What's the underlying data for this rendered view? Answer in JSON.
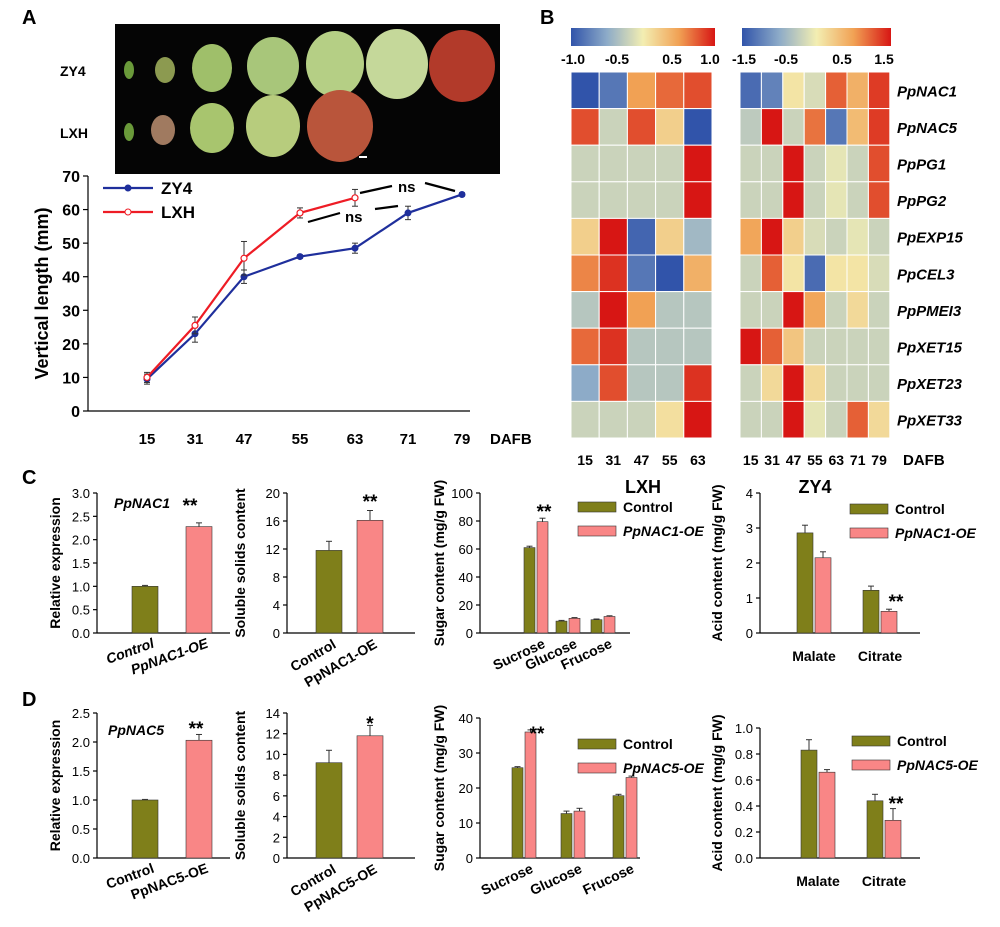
{
  "panel_labels": {
    "a": "A",
    "b": "B",
    "c": "C",
    "d": "D"
  },
  "photo": {
    "row_labels": [
      "ZY4",
      "LXH"
    ]
  },
  "chart_data": [
    {
      "id": "A",
      "type": "line",
      "ylabel": "Vertical  length (mm)",
      "xlabel": "DAFB",
      "categories": [
        "15",
        "31",
        "47",
        "55",
        "63",
        "71",
        "79"
      ],
      "ylim": [
        0,
        70
      ],
      "yticks": [
        0,
        10,
        20,
        30,
        40,
        50,
        60,
        70
      ],
      "series": [
        {
          "name": "ZY4",
          "color": "#1f2f9c",
          "values": [
            9.5,
            23,
            40,
            46,
            48.5,
            59,
            64.5
          ],
          "errors": [
            1.5,
            2.5,
            2,
            0.5,
            1.5,
            2,
            0.5
          ]
        },
        {
          "name": "LXH",
          "color": "#ee1c25",
          "values": [
            10,
            25.5,
            45.5,
            59,
            63.5,
            null,
            null
          ],
          "errors": [
            1.5,
            2.5,
            5,
            1.5,
            2.5,
            null,
            null
          ]
        }
      ],
      "annotations": [
        "ns",
        "ns"
      ]
    },
    {
      "id": "B-LXH",
      "type": "heatmap",
      "title": "LXH",
      "colorbar": {
        "ticks": [
          "-1.0",
          "-0.5",
          "0.5",
          "1.0"
        ],
        "min": -1.0,
        "max": 1.0
      },
      "x": [
        "15",
        "31",
        "47",
        "55",
        "63"
      ],
      "rows": [
        "PpNAC1",
        "PpNAC5",
        "PpPG1",
        "PpPG2",
        "PpEXP15",
        "PpCEL3",
        "PpPMEI3",
        "PpXET15",
        "PpXET23",
        "PpXET33"
      ],
      "values": [
        [
          -1.0,
          -0.8,
          0.5,
          0.7,
          0.8
        ],
        [
          0.8,
          -0.2,
          0.8,
          0.2,
          -1.0
        ],
        [
          -0.2,
          -0.2,
          -0.2,
          -0.2,
          1.0
        ],
        [
          -0.2,
          -0.2,
          -0.2,
          -0.2,
          1.0
        ],
        [
          0.2,
          1.0,
          -0.9,
          0.2,
          -0.4
        ],
        [
          0.6,
          0.9,
          -0.8,
          -1.0,
          0.4
        ],
        [
          -0.3,
          1.0,
          0.5,
          -0.3,
          -0.3
        ],
        [
          0.7,
          0.9,
          -0.3,
          -0.3,
          -0.3
        ],
        [
          -0.5,
          0.8,
          -0.3,
          -0.3,
          0.9
        ],
        [
          -0.2,
          -0.2,
          -0.2,
          0.1,
          1.0
        ]
      ]
    },
    {
      "id": "B-ZY4",
      "type": "heatmap",
      "title": "ZY4",
      "colorbar": {
        "ticks": [
          "-1.5",
          "-0.5",
          "0.5",
          "1.5"
        ],
        "min": -1.5,
        "max": 1.5
      },
      "x": [
        "15",
        "31",
        "47",
        "55",
        "63",
        "71",
        "79"
      ],
      "xlabel": "DAFB",
      "rows": [
        "PpNAC1",
        "PpNAC5",
        "PpPG1",
        "PpPG2",
        "PpEXP15",
        "PpCEL3",
        "PpPMEI3",
        "PpXET15",
        "PpXET23",
        "PpXET33"
      ],
      "values": [
        [
          -1.3,
          -1.1,
          0.1,
          -0.2,
          1.1,
          0.6,
          1.3
        ],
        [
          -0.4,
          1.5,
          -0.3,
          1.0,
          -1.2,
          0.5,
          1.3
        ],
        [
          -0.3,
          -0.3,
          1.5,
          -0.3,
          -0.1,
          -0.3,
          1.2
        ],
        [
          -0.3,
          -0.3,
          1.5,
          -0.3,
          -0.1,
          -0.3,
          1.2
        ],
        [
          0.7,
          1.6,
          0.3,
          -0.2,
          -0.3,
          -0.1,
          -0.3
        ],
        [
          -0.3,
          1.1,
          0.1,
          -1.3,
          0.1,
          0.1,
          -0.2
        ],
        [
          -0.3,
          -0.3,
          1.5,
          0.7,
          -0.3,
          0.2,
          -0.3
        ],
        [
          1.5,
          1.1,
          0.4,
          -0.3,
          -0.3,
          -0.3,
          -0.3
        ],
        [
          -0.3,
          0.2,
          1.6,
          0.2,
          -0.3,
          -0.3,
          -0.3
        ],
        [
          -0.3,
          -0.3,
          1.5,
          -0.1,
          -0.3,
          1.1,
          0.2
        ]
      ]
    },
    {
      "id": "C1",
      "type": "bar",
      "title": "PpNAC1",
      "ylabel": "Relative expression",
      "categories": [
        "Control",
        "PpNAC1-OE"
      ],
      "values": [
        1.0,
        2.28
      ],
      "errors": [
        0.02,
        0.08
      ],
      "ylim": [
        0,
        3.0
      ],
      "yticks": [
        "0.0",
        "0.5",
        "1.0",
        "1.5",
        "2.0",
        "2.5",
        "3.0"
      ],
      "sig": "**"
    },
    {
      "id": "C2",
      "type": "bar",
      "ylabel": "Soluble solids content",
      "categories": [
        "Control",
        "PpNAC1-OE"
      ],
      "values": [
        11.8,
        16.1
      ],
      "errors": [
        1.3,
        1.4
      ],
      "ylim": [
        0,
        20
      ],
      "yticks": [
        "0",
        "4",
        "8",
        "12",
        "16",
        "20"
      ],
      "sig": "**"
    },
    {
      "id": "C3",
      "type": "bar",
      "ylabel": "Sugar content (mg/g FW)",
      "categories": [
        "Sucrose",
        "Glucose",
        "Frucose"
      ],
      "series": [
        {
          "name": "Control",
          "color": "#7f7f1a",
          "values": [
            61,
            8.5,
            9.5
          ],
          "errors": [
            1.0,
            0.5,
            0.5
          ]
        },
        {
          "name": "PpNAC1-OE",
          "color": "#f98686",
          "values": [
            79.5,
            10.5,
            11.8
          ],
          "errors": [
            2.5,
            0.5,
            0.5
          ]
        }
      ],
      "ylim": [
        0,
        100
      ],
      "yticks": [
        "0",
        "20",
        "40",
        "60",
        "80",
        "100"
      ],
      "sig": "**"
    },
    {
      "id": "C4",
      "type": "bar",
      "ylabel": "Acid content (mg/g FW)",
      "categories": [
        "Malate",
        "Citrate"
      ],
      "series": [
        {
          "name": "Control",
          "color": "#7f7f1a",
          "values": [
            2.86,
            1.22
          ],
          "errors": [
            0.22,
            0.12
          ]
        },
        {
          "name": "PpNAC1-OE",
          "color": "#f98686",
          "values": [
            2.15,
            0.62
          ],
          "errors": [
            0.17,
            0.06
          ]
        }
      ],
      "ylim": [
        0,
        4
      ],
      "yticks": [
        "0",
        "1",
        "2",
        "3",
        "4"
      ],
      "sig": "**"
    },
    {
      "id": "D1",
      "type": "bar",
      "title": "PpNAC5",
      "ylabel": "Relative expression",
      "categories": [
        "Control",
        "PpNAC5-OE"
      ],
      "values": [
        1.0,
        2.03
      ],
      "errors": [
        0.01,
        0.1
      ],
      "ylim": [
        0,
        2.5
      ],
      "yticks": [
        "0.0",
        "0.5",
        "1.0",
        "1.5",
        "2.0",
        "2.5"
      ],
      "sig": "**"
    },
    {
      "id": "D2",
      "type": "bar",
      "ylabel": "Soluble solids content",
      "categories": [
        "Control",
        "PpNAC5-OE"
      ],
      "values": [
        9.2,
        11.8
      ],
      "errors": [
        1.2,
        1.0
      ],
      "ylim": [
        0,
        14
      ],
      "yticks": [
        "0",
        "2",
        "4",
        "6",
        "8",
        "10",
        "12",
        "14"
      ],
      "sig": "*"
    },
    {
      "id": "D3",
      "type": "bar",
      "ylabel": "Sugar content (mg/g FW)",
      "categories": [
        "Sucrose",
        "Glucose",
        "Frucose"
      ],
      "series": [
        {
          "name": "Control",
          "color": "#7f7f1a",
          "values": [
            25.8,
            12.7,
            17.8
          ],
          "errors": [
            0.3,
            0.7,
            0.4
          ]
        },
        {
          "name": "PpNAC5-OE",
          "color": "#f98686",
          "values": [
            36,
            13.4,
            23
          ],
          "errors": [
            0.6,
            0.8,
            0.4
          ]
        }
      ],
      "ylim": [
        0,
        40
      ],
      "yticks": [
        "0",
        "10",
        "20",
        "30",
        "40"
      ],
      "sig": "**"
    },
    {
      "id": "D4",
      "type": "bar",
      "ylabel": "Acid content (mg/g FW)",
      "categories": [
        "Malate",
        "Citrate"
      ],
      "series": [
        {
          "name": "Control",
          "color": "#7f7f1a",
          "values": [
            0.83,
            0.44
          ],
          "errors": [
            0.08,
            0.05
          ]
        },
        {
          "name": "PpNAC5-OE",
          "color": "#f98686",
          "values": [
            0.66,
            0.29
          ],
          "errors": [
            0.02,
            0.09
          ]
        }
      ],
      "ylim": [
        0,
        1.0
      ],
      "yticks": [
        "0.0",
        "0.2",
        "0.4",
        "0.6",
        "0.8",
        "1.0"
      ],
      "sig": "**"
    }
  ]
}
